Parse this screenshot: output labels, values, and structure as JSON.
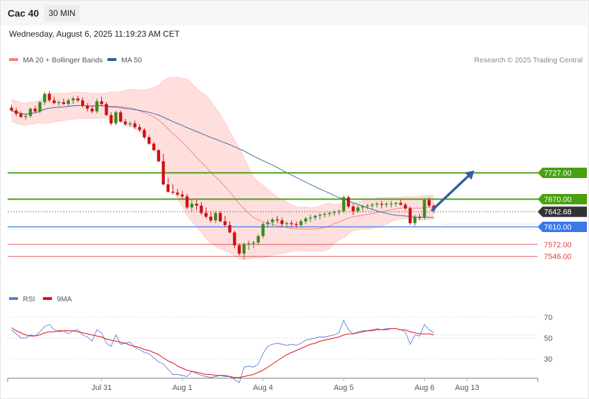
{
  "header": {
    "instrument": "Cac 40",
    "timeframe": "30 MIN",
    "datetime": "Wednesday, August 6, 2025 11:19:23 AM CET"
  },
  "legend": {
    "ma20_bb": {
      "label": "MA 20 + Bollinger Bands",
      "color": "#f08080"
    },
    "ma50": {
      "label": "MA 50",
      "color": "#2f5f9e"
    }
  },
  "credit": "Research © 2025 Trading Central",
  "rsi_legend": {
    "rsi": {
      "label": "RSI",
      "color": "#5b7fd6"
    },
    "ma9": {
      "label": "9MA",
      "color": "#dd1111"
    }
  },
  "colors": {
    "up": "#3a8a1e",
    "down": "#cc1111",
    "band_fill": "#ffdede",
    "resistance": "#4aa010",
    "support": "#3a78e8",
    "support_red": "#e04040",
    "current": "#333333",
    "arrow": "#2f5f9e"
  },
  "chart_data": [
    {
      "type": "candlestick",
      "title": "",
      "xlabel": "",
      "ylabel": "",
      "x_ticks": [
        {
          "label": "Jul 31",
          "index": 19
        },
        {
          "label": "Aug 1",
          "index": 36
        },
        {
          "label": "Aug 4",
          "index": 53
        },
        {
          "label": "Aug 5",
          "index": 70
        },
        {
          "label": "Aug 6",
          "index": 87
        },
        {
          "label": "Aug 13",
          "index": 96
        }
      ],
      "levels": [
        {
          "value": 7727.0,
          "label": "7727.00",
          "kind": "resistance"
        },
        {
          "value": 7670.0,
          "label": "7670.00",
          "kind": "resistance"
        },
        {
          "value": 7642.68,
          "label": "7642.68",
          "kind": "current"
        },
        {
          "value": 7610.0,
          "label": "7610.00",
          "kind": "support"
        },
        {
          "value": 7572.0,
          "label": "7572.00",
          "kind": "support_red"
        },
        {
          "value": 7546.0,
          "label": "7546.00",
          "kind": "support_red"
        }
      ],
      "projection": {
        "from": [
          88.5,
          7645
        ],
        "to": [
          97.5,
          7732
        ]
      },
      "candles": [
        [
          7868,
          7874,
          7860,
          7862
        ],
        [
          7862,
          7868,
          7850,
          7855
        ],
        [
          7855,
          7860,
          7846,
          7848
        ],
        [
          7848,
          7855,
          7842,
          7850
        ],
        [
          7850,
          7868,
          7846,
          7866
        ],
        [
          7866,
          7872,
          7858,
          7860
        ],
        [
          7860,
          7882,
          7856,
          7880
        ],
        [
          7880,
          7902,
          7874,
          7898
        ],
        [
          7898,
          7904,
          7880,
          7884
        ],
        [
          7884,
          7892,
          7876,
          7878
        ],
        [
          7878,
          7884,
          7872,
          7880
        ],
        [
          7880,
          7888,
          7874,
          7876
        ],
        [
          7876,
          7888,
          7872,
          7884
        ],
        [
          7884,
          7892,
          7876,
          7888
        ],
        [
          7888,
          7894,
          7880,
          7884
        ],
        [
          7884,
          7890,
          7868,
          7872
        ],
        [
          7872,
          7878,
          7860,
          7866
        ],
        [
          7866,
          7872,
          7856,
          7860
        ],
        [
          7860,
          7888,
          7856,
          7882
        ],
        [
          7882,
          7892,
          7872,
          7876
        ],
        [
          7876,
          7880,
          7850,
          7852
        ],
        [
          7852,
          7858,
          7830,
          7834
        ],
        [
          7834,
          7862,
          7830,
          7858
        ],
        [
          7858,
          7862,
          7836,
          7838
        ],
        [
          7838,
          7844,
          7828,
          7832
        ],
        [
          7832,
          7838,
          7826,
          7834
        ],
        [
          7834,
          7840,
          7822,
          7826
        ],
        [
          7826,
          7832,
          7816,
          7820
        ],
        [
          7820,
          7824,
          7800,
          7804
        ],
        [
          7804,
          7808,
          7788,
          7790
        ],
        [
          7790,
          7794,
          7774,
          7776
        ],
        [
          7776,
          7778,
          7750,
          7752
        ],
        [
          7752,
          7768,
          7700,
          7702
        ],
        [
          7702,
          7716,
          7684,
          7686
        ],
        [
          7686,
          7702,
          7680,
          7684
        ],
        [
          7684,
          7692,
          7676,
          7680
        ],
        [
          7680,
          7688,
          7670,
          7676
        ],
        [
          7676,
          7682,
          7648,
          7652
        ],
        [
          7652,
          7668,
          7644,
          7660
        ],
        [
          7660,
          7668,
          7646,
          7656
        ],
        [
          7656,
          7664,
          7636,
          7640
        ],
        [
          7640,
          7652,
          7628,
          7632
        ],
        [
          7632,
          7644,
          7620,
          7624
        ],
        [
          7624,
          7644,
          7618,
          7640
        ],
        [
          7640,
          7644,
          7620,
          7622
        ],
        [
          7622,
          7634,
          7610,
          7614
        ],
        [
          7614,
          7622,
          7596,
          7598
        ],
        [
          7598,
          7602,
          7564,
          7570
        ],
        [
          7570,
          7574,
          7548,
          7552
        ],
        [
          7552,
          7576,
          7540,
          7572
        ],
        [
          7572,
          7580,
          7560,
          7574
        ],
        [
          7574,
          7580,
          7564,
          7576
        ],
        [
          7576,
          7594,
          7570,
          7590
        ],
        [
          7590,
          7620,
          7586,
          7616
        ],
        [
          7616,
          7626,
          7608,
          7620
        ],
        [
          7620,
          7630,
          7612,
          7626
        ],
        [
          7626,
          7634,
          7618,
          7624
        ],
        [
          7624,
          7630,
          7610,
          7616
        ],
        [
          7616,
          7622,
          7608,
          7618
        ],
        [
          7618,
          7624,
          7610,
          7616
        ],
        [
          7616,
          7622,
          7608,
          7614
        ],
        [
          7614,
          7626,
          7610,
          7622
        ],
        [
          7622,
          7632,
          7616,
          7628
        ],
        [
          7628,
          7636,
          7620,
          7630
        ],
        [
          7630,
          7636,
          7624,
          7634
        ],
        [
          7634,
          7640,
          7626,
          7636
        ],
        [
          7636,
          7642,
          7630,
          7638
        ],
        [
          7638,
          7644,
          7632,
          7640
        ],
        [
          7640,
          7646,
          7634,
          7642
        ],
        [
          7642,
          7648,
          7636,
          7644
        ],
        [
          7644,
          7678,
          7640,
          7674
        ],
        [
          7674,
          7678,
          7650,
          7654
        ],
        [
          7654,
          7660,
          7636,
          7644
        ],
        [
          7644,
          7656,
          7640,
          7652
        ],
        [
          7652,
          7658,
          7644,
          7654
        ],
        [
          7654,
          7660,
          7648,
          7656
        ],
        [
          7656,
          7662,
          7648,
          7658
        ],
        [
          7658,
          7664,
          7652,
          7660
        ],
        [
          7660,
          7666,
          7650,
          7658
        ],
        [
          7658,
          7664,
          7652,
          7660
        ],
        [
          7660,
          7666,
          7652,
          7660
        ],
        [
          7660,
          7664,
          7654,
          7662
        ],
        [
          7662,
          7668,
          7656,
          7658
        ],
        [
          7658,
          7662,
          7646,
          7650
        ],
        [
          7650,
          7654,
          7614,
          7618
        ],
        [
          7618,
          7636,
          7612,
          7632
        ],
        [
          7632,
          7638,
          7624,
          7630
        ],
        [
          7630,
          7672,
          7626,
          7668
        ],
        [
          7668,
          7674,
          7652,
          7656
        ],
        [
          7656,
          7660,
          7640,
          7646
        ]
      ]
    },
    {
      "type": "line",
      "title": "",
      "yticks": [
        30,
        50,
        70
      ],
      "series": [
        {
          "name": "RSI",
          "values": [
            58,
            54,
            50,
            50,
            53,
            52,
            56,
            61,
            63,
            58,
            56,
            57,
            54,
            57,
            58,
            53,
            51,
            47,
            58,
            55,
            45,
            42,
            53,
            44,
            45,
            46,
            41,
            39,
            36,
            35,
            31,
            27,
            25,
            20,
            15,
            15,
            14,
            13,
            18,
            16,
            14,
            13,
            12,
            13,
            14,
            13,
            13,
            10,
            7,
            22,
            23,
            22,
            25,
            35,
            42,
            44,
            45,
            44,
            43,
            44,
            43,
            45,
            48,
            49,
            50,
            51,
            51,
            52,
            53,
            55,
            67,
            58,
            54,
            56,
            57,
            57,
            58,
            59,
            58,
            59,
            59,
            59,
            58,
            56,
            44,
            53,
            52,
            63,
            58,
            55
          ]
        },
        {
          "name": "9MA",
          "values": [
            60,
            57,
            55,
            53,
            52,
            52,
            53,
            55,
            56,
            56,
            57,
            57,
            57,
            57,
            56,
            55,
            54,
            53,
            52,
            51,
            49,
            48,
            47,
            46,
            45,
            43,
            42,
            41,
            39,
            38,
            36,
            34,
            31,
            28,
            26,
            23,
            21,
            19,
            18,
            17,
            16,
            15,
            15,
            14,
            14,
            14,
            13,
            12,
            12,
            13,
            14,
            15,
            17,
            19,
            22,
            25,
            28,
            31,
            34,
            36,
            38,
            40,
            42,
            44,
            45,
            47,
            48,
            49,
            50,
            51,
            53,
            54,
            54,
            55,
            56,
            57,
            57,
            58,
            58,
            58,
            59,
            59,
            58,
            58,
            56,
            55,
            54,
            54,
            54,
            53
          ]
        }
      ]
    }
  ]
}
